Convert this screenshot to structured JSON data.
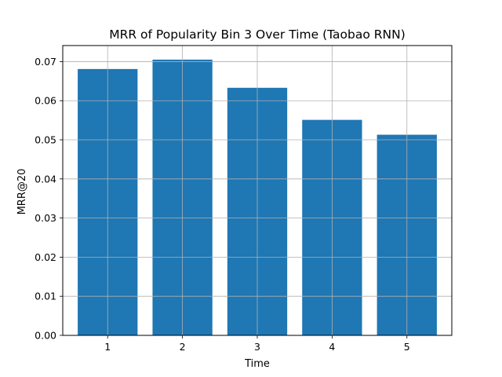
{
  "chart_data": {
    "type": "bar",
    "title": "MRR of Popularity Bin 3 Over Time (Taobao RNN)",
    "xlabel": "Time",
    "ylabel": "MRR@20",
    "categories": [
      "1",
      "2",
      "3",
      "4",
      "5"
    ],
    "values": [
      0.0681,
      0.0705,
      0.0633,
      0.0551,
      0.0513
    ],
    "ylim": [
      0,
      0.0741
    ],
    "yticks": [
      "0.00",
      "0.01",
      "0.02",
      "0.03",
      "0.04",
      "0.05",
      "0.06",
      "0.07"
    ],
    "grid": true,
    "bar_color": "#1f77b4",
    "grid_color": "#b0b0b0"
  }
}
